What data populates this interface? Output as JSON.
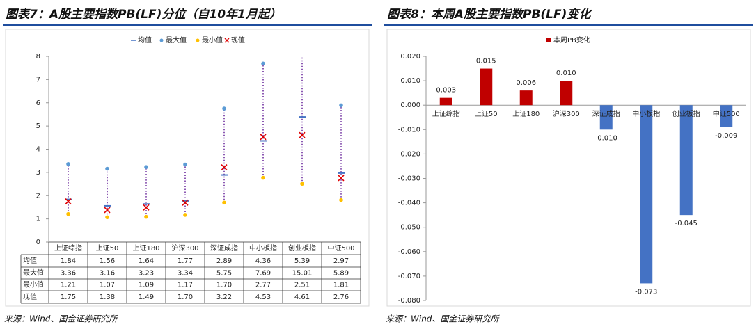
{
  "charts": [
    {
      "title": "图表7：A股主要指数PB(LF)分位（自10年1月起）",
      "source": "来源：Wind、国金证券研究所",
      "chart_data": {
        "type": "range",
        "categories": [
          "上证综指",
          "上证50",
          "上证180",
          "沪深300",
          "深证成指",
          "中小板指",
          "创业板指",
          "中证500"
        ],
        "series": [
          {
            "name": "均值",
            "color": "#4472c4",
            "values": [
              1.84,
              1.56,
              1.64,
              1.77,
              2.89,
              4.36,
              5.39,
              2.97
            ]
          },
          {
            "name": "最大值",
            "color": "#5b9bd5",
            "values": [
              3.36,
              3.16,
              3.23,
              3.34,
              5.75,
              7.69,
              15.01,
              5.89
            ]
          },
          {
            "name": "最小值",
            "color": "#ffc000",
            "values": [
              1.21,
              1.07,
              1.09,
              1.17,
              1.7,
              2.77,
              2.51,
              1.81
            ],
            "value_labels": [
              "1.21",
              "1.07",
              "1.09",
              "1.17",
              "1.70",
              "2.77",
              "2.51",
              "1.81"
            ]
          },
          {
            "name": "现值",
            "color": "#e00000",
            "values": [
              1.75,
              1.38,
              1.49,
              1.7,
              3.22,
              4.53,
              4.61,
              2.76
            ],
            "value_labels": [
              "1.75",
              "1.38",
              "1.49",
              "1.70",
              "3.22",
              "4.53",
              "4.61",
              "2.76"
            ]
          }
        ],
        "range_color": "#7030a0",
        "ylim": [
          0,
          8
        ],
        "yticks": [
          0,
          1,
          2,
          3,
          4,
          5,
          6,
          7,
          8
        ]
      }
    },
    {
      "title": "图表8：本周A股主要指数PB(LF)变化",
      "source": "来源：Wind、国金证券研究所",
      "chart_data": {
        "type": "bar",
        "categories": [
          "上证综指",
          "上证50",
          "上证180",
          "沪深300",
          "深证成指",
          "中小板指",
          "创业板指",
          "中证500"
        ],
        "series": [
          {
            "name": "本周PB变化",
            "color": "#c00000",
            "negative_color": "#4472c4",
            "values": [
              0.003,
              0.015,
              0.006,
              0.01,
              -0.01,
              -0.073,
              -0.045,
              -0.009
            ],
            "value_labels": [
              "0.003",
              "0.015",
              "0.006",
              "0.010",
              "-0.010",
              "-0.073",
              "-0.045",
              "-0.009"
            ]
          }
        ],
        "ylim": [
          -0.08,
          0.02
        ],
        "yticks": [
          {
            "value": 0.02,
            "label": "0.020"
          },
          {
            "value": 0.01,
            "label": "0.010"
          },
          {
            "value": 0,
            "label": "0.000"
          },
          {
            "value": -0.01,
            "label": "-0.010"
          },
          {
            "value": -0.02,
            "label": "-0.020"
          },
          {
            "value": -0.03,
            "label": "-0.030"
          },
          {
            "value": -0.04,
            "label": "-0.040"
          },
          {
            "value": -0.05,
            "label": "-0.050"
          },
          {
            "value": -0.06,
            "label": "-0.060"
          },
          {
            "value": -0.07,
            "label": "-0.070"
          },
          {
            "value": -0.08,
            "label": "-0.080"
          }
        ]
      }
    }
  ]
}
